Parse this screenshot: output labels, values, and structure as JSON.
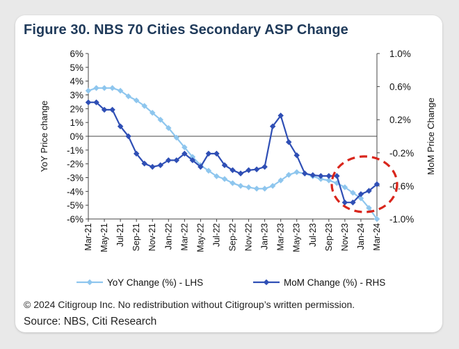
{
  "figure": {
    "title": "Figure 30. NBS 70 Cities Secondary ASP Change",
    "copyright": "© 2024 Citigroup Inc. No redistribution without Citigroup’s written permission.",
    "source": "Source: NBS, Citi Research"
  },
  "chart_data": {
    "type": "line",
    "title": "Figure 30. NBS 70 Cities Secondary ASP Change",
    "ylabel_left": "YoY Price change",
    "ylabel_right": "MoM Price Change",
    "ylim_left": [
      -6,
      6
    ],
    "ylim_right": [
      -1.0,
      1.0
    ],
    "yticks_left": [
      "6%",
      "5%",
      "4%",
      "3%",
      "2%",
      "1%",
      "0%",
      "-1%",
      "-2%",
      "-3%",
      "-4%",
      "-5%",
      "-6%"
    ],
    "yticks_right": [
      "1.0%",
      "0.6%",
      "0.2%",
      "-0.2%",
      "-0.6%",
      "-1.0%"
    ],
    "x_tick_labels": [
      "Mar-21",
      "May-21",
      "Jul-21",
      "Sep-21",
      "Nov-21",
      "Jan-22",
      "Mar-22",
      "May-22",
      "Jul-22",
      "Sep-22",
      "Nov-22",
      "Jan-23",
      "Mar-23",
      "May-23",
      "Jul-23",
      "Sep-23",
      "Nov-23",
      "Jan-24",
      "Mar-24"
    ],
    "x": [
      "Mar-21",
      "Apr-21",
      "May-21",
      "Jun-21",
      "Jul-21",
      "Aug-21",
      "Sep-21",
      "Oct-21",
      "Nov-21",
      "Dec-21",
      "Jan-22",
      "Feb-22",
      "Mar-22",
      "Apr-22",
      "May-22",
      "Jun-22",
      "Jul-22",
      "Aug-22",
      "Sep-22",
      "Oct-22",
      "Nov-22",
      "Dec-22",
      "Jan-23",
      "Feb-23",
      "Mar-23",
      "Apr-23",
      "May-23",
      "Jun-23",
      "Jul-23",
      "Aug-23",
      "Sep-23",
      "Oct-23",
      "Nov-23",
      "Dec-23",
      "Jan-24",
      "Feb-24",
      "Mar-24"
    ],
    "series": [
      {
        "name": "YoY Change (%) - LHS",
        "axis": "left",
        "color": "#8ec6ee",
        "values": [
          3.3,
          3.5,
          3.5,
          3.5,
          3.3,
          2.9,
          2.6,
          2.2,
          1.7,
          1.2,
          0.6,
          -0.1,
          -0.8,
          -1.5,
          -2.1,
          -2.5,
          -2.9,
          -3.1,
          -3.4,
          -3.6,
          -3.7,
          -3.8,
          -3.8,
          -3.6,
          -3.2,
          -2.8,
          -2.6,
          -2.7,
          -2.9,
          -3.1,
          -3.2,
          -3.4,
          -3.7,
          -4.1,
          -4.5,
          -5.2,
          -6.0
        ]
      },
      {
        "name": "MoM Change (%) - RHS",
        "axis": "right",
        "color": "#2f4fb5",
        "values": [
          0.41,
          0.41,
          0.32,
          0.32,
          0.12,
          0.0,
          -0.21,
          -0.33,
          -0.37,
          -0.35,
          -0.29,
          -0.29,
          -0.21,
          -0.29,
          -0.37,
          -0.21,
          -0.21,
          -0.35,
          -0.41,
          -0.45,
          -0.41,
          -0.4,
          -0.37,
          0.12,
          0.25,
          -0.07,
          -0.23,
          -0.45,
          -0.47,
          -0.48,
          -0.48,
          -0.48,
          -0.8,
          -0.8,
          -0.7,
          -0.66,
          -0.58
        ]
      }
    ],
    "legend": [
      "YoY Change (%) - LHS",
      "MoM Change (%) - RHS"
    ],
    "annotation": "red dashed circle highlighting late-2023 to Mar-24 lows",
    "annotation_color": "#d9261c"
  }
}
